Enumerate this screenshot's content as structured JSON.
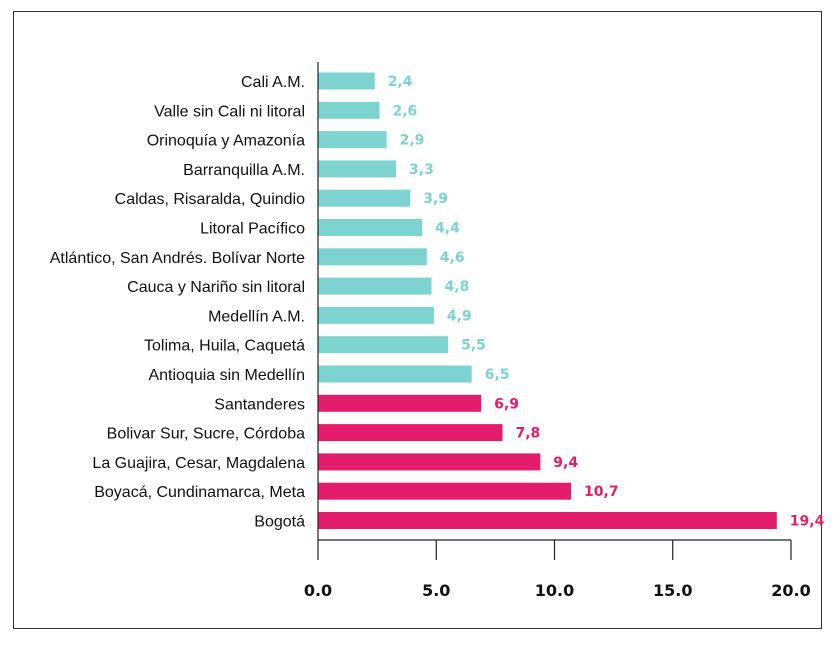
{
  "chart_data": {
    "type": "bar",
    "orientation": "horizontal",
    "title": "",
    "xlabel": "",
    "ylabel": "",
    "xlim": [
      0,
      20
    ],
    "x_ticks": [
      "0.0",
      "5.0",
      "10.0",
      "15.0",
      "20.0"
    ],
    "grid": false,
    "colors": {
      "low": "#7dd3d0",
      "high": "#e31c6b"
    },
    "categories": [
      "Cali A.M.",
      "Valle sin Cali ni litoral",
      "Orinoquía y Amazonía",
      "Barranquilla A.M.",
      "Caldas, Risaralda, Quindio",
      "Litoral Pacífico",
      "Atlántico, San Andrés. Bolívar Norte",
      "Cauca y Nariño sin litoral",
      "Medellín A.M.",
      "Tolima, Huila, Caquetá",
      "Antioquia sin Medellín",
      "Santanderes",
      "Bolivar Sur, Sucre, Córdoba",
      "La Guajira, Cesar, Magdalena",
      "Boyacá, Cundinamarca, Meta",
      "Bogotá"
    ],
    "values": [
      2.4,
      2.6,
      2.9,
      3.3,
      3.9,
      4.4,
      4.6,
      4.8,
      4.9,
      5.5,
      6.5,
      6.9,
      7.8,
      9.4,
      10.7,
      19.4
    ],
    "value_labels": [
      "2,4",
      "2,6",
      "2,9",
      "3,3",
      "3,9",
      "4,4",
      "4,6",
      "4,8",
      "4,9",
      "5,5",
      "6,5",
      "6,9",
      "7,8",
      "9,4",
      "10,7",
      "19,4"
    ],
    "bar_color_group": [
      "low",
      "low",
      "low",
      "low",
      "low",
      "low",
      "low",
      "low",
      "low",
      "low",
      "low",
      "high",
      "high",
      "high",
      "high",
      "high"
    ]
  }
}
